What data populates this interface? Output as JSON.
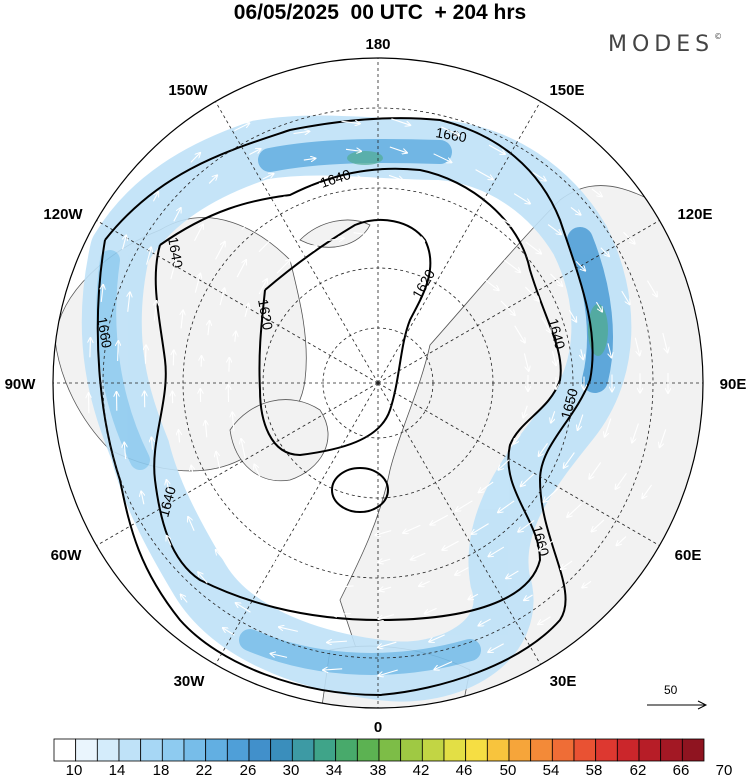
{
  "title": "06/05/2025  00 UTC  + 204 hrs",
  "brand": "MODES",
  "brand_mark": "©",
  "map": {
    "longitude_labels": [
      {
        "id": "lon-180",
        "text": "180"
      },
      {
        "id": "lon-150e",
        "text": "150E"
      },
      {
        "id": "lon-120e",
        "text": "120E"
      },
      {
        "id": "lon-90e",
        "text": "90E"
      },
      {
        "id": "lon-60e",
        "text": "60E"
      },
      {
        "id": "lon-30e",
        "text": "30E"
      },
      {
        "id": "lon-0",
        "text": "0"
      },
      {
        "id": "lon-30w",
        "text": "30W"
      },
      {
        "id": "lon-60w",
        "text": "60W"
      },
      {
        "id": "lon-90w",
        "text": "90W"
      },
      {
        "id": "lon-120w",
        "text": "120W"
      },
      {
        "id": "lon-150w",
        "text": "150W"
      }
    ],
    "contour_labels": [
      "1660",
      "1640",
      "1620",
      "1620",
      "1640",
      "1660",
      "1640",
      "1650",
      "1660",
      "1640",
      "1620"
    ],
    "colors": {
      "land": "#f2f2f2",
      "coast": "#555555",
      "grid": "#222222",
      "wind_vector": "#ffffff",
      "contour": "#000000"
    }
  },
  "colorbar": {
    "labels": [
      "10",
      "14",
      "18",
      "22",
      "26",
      "30",
      "34",
      "38",
      "42",
      "46",
      "50",
      "54",
      "58",
      "62",
      "66",
      "70"
    ],
    "colors": [
      "#ffffff",
      "#eaf5fd",
      "#d4ecfb",
      "#bfe2f8",
      "#a7d7f5",
      "#8ecbf0",
      "#77bde9",
      "#62afe2",
      "#4f9fd8",
      "#4190cb",
      "#3a8ebc",
      "#3d9aa4",
      "#3fa489",
      "#48aa6b",
      "#5cb252",
      "#7dbd47",
      "#9fc943",
      "#c2d544",
      "#e3df45",
      "#f6de43",
      "#f8c43d",
      "#f6a53a",
      "#f38a38",
      "#ef6d36",
      "#e95233",
      "#dd3830",
      "#cb262b",
      "#b71d27",
      "#a31824",
      "#8f1420"
    ]
  },
  "wind_scale": {
    "label": "50"
  }
}
